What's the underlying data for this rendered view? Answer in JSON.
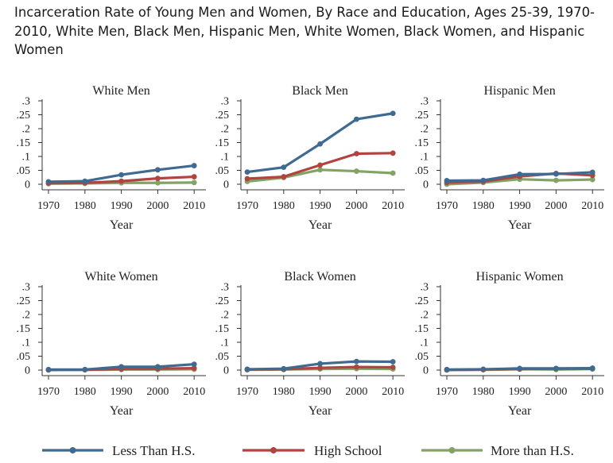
{
  "title": "Incarceration Rate of Young Men and Women, By Race and Education, Ages 25-39, 1970-2010, White Men, Black Men, Hispanic Men, White Women, Black Women, and Hispanic Women",
  "colors": {
    "less_than_hs": "#3f6a92",
    "high_school": "#b1443f",
    "more_than_hs": "#82a366",
    "axis": "#333333"
  },
  "legend": [
    "Less Than H.S.",
    "High School",
    "More than H.S."
  ],
  "chart_data": [
    {
      "type": "line",
      "title": "White Men",
      "xlabel": "Year",
      "ylabel": "",
      "x": [
        1970,
        1980,
        1990,
        2000,
        2010
      ],
      "ylim": [
        0,
        0.3
      ],
      "yticks": [
        "0",
        ".05",
        ".1",
        ".15",
        ".2",
        ".25",
        ".3"
      ],
      "xticks": [
        "1970",
        "1980",
        "1990",
        "2000",
        "2010"
      ],
      "series": [
        {
          "name": "Less Than H.S.",
          "values": [
            0.009,
            0.011,
            0.034,
            0.052,
            0.067
          ]
        },
        {
          "name": "High School",
          "values": [
            0.004,
            0.005,
            0.011,
            0.021,
            0.027
          ]
        },
        {
          "name": "More than H.S.",
          "values": [
            0.002,
            0.003,
            0.005,
            0.005,
            0.006
          ]
        }
      ]
    },
    {
      "type": "line",
      "title": "Black Men",
      "xlabel": "Year",
      "ylabel": "",
      "x": [
        1970,
        1980,
        1990,
        2000,
        2010
      ],
      "ylim": [
        0,
        0.3
      ],
      "yticks": [
        "0",
        ".05",
        ".1",
        ".15",
        ".2",
        ".25",
        ".3"
      ],
      "xticks": [
        "1970",
        "1980",
        "1990",
        "2000",
        "2010"
      ],
      "series": [
        {
          "name": "Less Than H.S.",
          "values": [
            0.044,
            0.061,
            0.145,
            0.234,
            0.255
          ]
        },
        {
          "name": "High School",
          "values": [
            0.02,
            0.027,
            0.069,
            0.11,
            0.112
          ]
        },
        {
          "name": "More than H.S.",
          "values": [
            0.01,
            0.024,
            0.052,
            0.047,
            0.04
          ]
        }
      ]
    },
    {
      "type": "line",
      "title": "Hispanic Men",
      "xlabel": "Year",
      "ylabel": "",
      "x": [
        1970,
        1980,
        1990,
        2000,
        2010
      ],
      "ylim": [
        0,
        0.3
      ],
      "yticks": [
        "0",
        ".05",
        ".1",
        ".15",
        ".2",
        ".25",
        ".3"
      ],
      "xticks": [
        "1970",
        "1980",
        "1990",
        "2000",
        "2010"
      ],
      "series": [
        {
          "name": "Less Than H.S.",
          "values": [
            0.013,
            0.014,
            0.036,
            0.037,
            0.043
          ]
        },
        {
          "name": "High School",
          "values": [
            0.006,
            0.01,
            0.028,
            0.039,
            0.032
          ]
        },
        {
          "name": "More than H.S.",
          "values": [
            0.0,
            0.006,
            0.018,
            0.014,
            0.017
          ]
        }
      ]
    },
    {
      "type": "line",
      "title": "White Women",
      "xlabel": "Year",
      "ylabel": "",
      "x": [
        1970,
        1980,
        1990,
        2000,
        2010
      ],
      "ylim": [
        0,
        0.3
      ],
      "yticks": [
        "0",
        ".05",
        ".1",
        ".15",
        ".2",
        ".25",
        ".3"
      ],
      "xticks": [
        "1970",
        "1980",
        "1990",
        "2000",
        "2010"
      ],
      "series": [
        {
          "name": "Less Than H.S.",
          "values": [
            0.002,
            0.002,
            0.012,
            0.012,
            0.021
          ]
        },
        {
          "name": "High School",
          "values": [
            0.001,
            0.001,
            0.004,
            0.005,
            0.007
          ]
        },
        {
          "name": "More than H.S.",
          "values": [
            0.0,
            0.001,
            0.002,
            0.002,
            0.003
          ]
        }
      ]
    },
    {
      "type": "line",
      "title": "Black Women",
      "xlabel": "Year",
      "ylabel": "",
      "x": [
        1970,
        1980,
        1990,
        2000,
        2010
      ],
      "ylim": [
        0,
        0.3
      ],
      "yticks": [
        "0",
        ".05",
        ".1",
        ".15",
        ".2",
        ".25",
        ".3"
      ],
      "xticks": [
        "1970",
        "1980",
        "1990",
        "2000",
        "2010"
      ],
      "series": [
        {
          "name": "Less Than H.S.",
          "values": [
            0.003,
            0.005,
            0.023,
            0.031,
            0.03
          ]
        },
        {
          "name": "High School",
          "values": [
            0.002,
            0.003,
            0.008,
            0.011,
            0.01
          ]
        },
        {
          "name": "More than H.S.",
          "values": [
            0.001,
            0.002,
            0.004,
            0.005,
            0.004
          ]
        }
      ]
    },
    {
      "type": "line",
      "title": "Hispanic Women",
      "xlabel": "Year",
      "ylabel": "",
      "x": [
        1970,
        1980,
        1990,
        2000,
        2010
      ],
      "ylim": [
        0,
        0.3
      ],
      "yticks": [
        "0",
        ".05",
        ".1",
        ".15",
        ".2",
        ".25",
        ".3"
      ],
      "xticks": [
        "1970",
        "1980",
        "1990",
        "2000",
        "2010"
      ],
      "series": [
        {
          "name": "Less Than H.S.",
          "values": [
            0.002,
            0.003,
            0.006,
            0.006,
            0.007
          ]
        },
        {
          "name": "High School",
          "values": [
            0.001,
            0.002,
            0.004,
            0.005,
            0.005
          ]
        },
        {
          "name": "More than H.S.",
          "values": [
            0.0,
            0.001,
            0.003,
            0.002,
            0.004
          ]
        }
      ]
    }
  ]
}
